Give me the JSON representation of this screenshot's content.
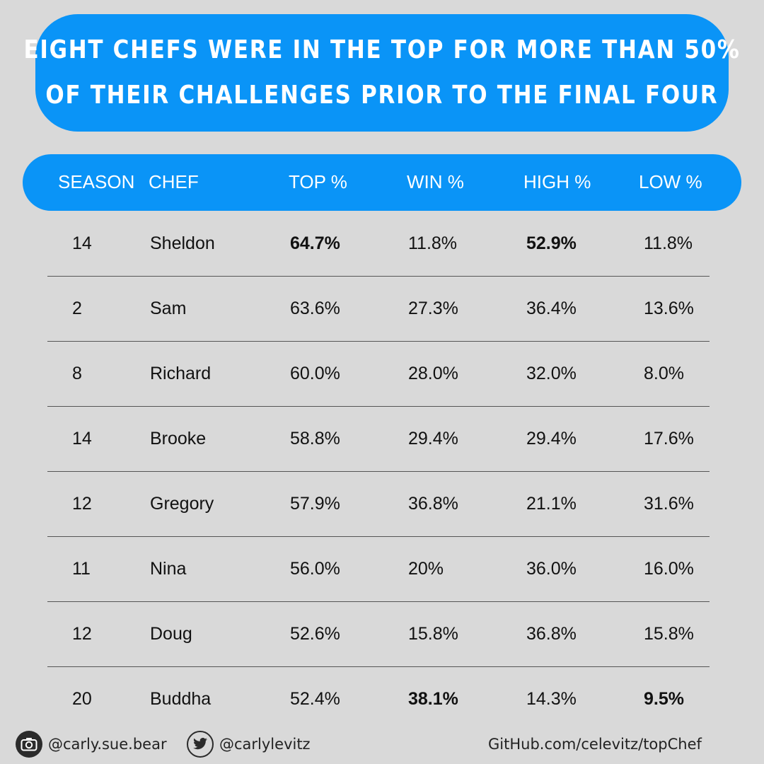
{
  "title": {
    "lines": [
      "EIGHT CHEFS WERE IN THE TOP FOR MORE THAN 50%",
      "OF THEIR CHALLENGES PRIOR TO THE FINAL FOUR"
    ]
  },
  "chart_data": {
    "type": "table",
    "columns": [
      "SEASON",
      "CHEF",
      "TOP %",
      "WIN %",
      "HIGH %",
      "LOW %"
    ],
    "rows": [
      {
        "season": "14",
        "chef": "Sheldon",
        "top": "64.7%",
        "win": "11.8%",
        "high": "52.9%",
        "low": "11.8%",
        "bold": [
          "top",
          "high"
        ]
      },
      {
        "season": "2",
        "chef": "Sam",
        "top": "63.6%",
        "win": "27.3%",
        "high": "36.4%",
        "low": "13.6%",
        "bold": []
      },
      {
        "season": "8",
        "chef": "Richard",
        "top": "60.0%",
        "win": "28.0%",
        "high": "32.0%",
        "low": "8.0%",
        "bold": []
      },
      {
        "season": "14",
        "chef": "Brooke",
        "top": "58.8%",
        "win": "29.4%",
        "high": "29.4%",
        "low": "17.6%",
        "bold": []
      },
      {
        "season": "12",
        "chef": "Gregory",
        "top": "57.9%",
        "win": "36.8%",
        "high": "21.1%",
        "low": "31.6%",
        "bold": []
      },
      {
        "season": "11",
        "chef": "Nina",
        "top": "56.0%",
        "win": "20%",
        "high": "36.0%",
        "low": "16.0%",
        "bold": []
      },
      {
        "season": "12",
        "chef": "Doug",
        "top": "52.6%",
        "win": "15.8%",
        "high": "36.8%",
        "low": "15.8%",
        "bold": []
      },
      {
        "season": "20",
        "chef": "Buddha",
        "top": "52.4%",
        "win": "38.1%",
        "high": "14.3%",
        "low": "9.5%",
        "bold": [
          "win",
          "low"
        ]
      }
    ]
  },
  "footer": {
    "instagram": "@carly.sue.bear",
    "twitter": "@carlylevitz",
    "github": "GitHub.com/celevitz/topChef"
  },
  "colors": {
    "accent": "#0a94f7",
    "background": "#d9d9d9",
    "text": "#111111"
  }
}
